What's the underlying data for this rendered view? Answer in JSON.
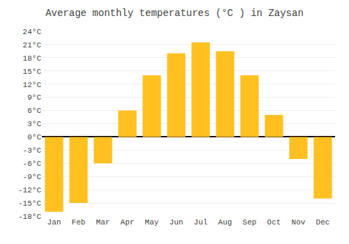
{
  "chart_data": {
    "type": "bar",
    "title": "Average monthly temperatures (°C ) in Zaysan",
    "categories": [
      "Jan",
      "Feb",
      "Mar",
      "Apr",
      "May",
      "Jun",
      "Jul",
      "Aug",
      "Sep",
      "Oct",
      "Nov",
      "Dec"
    ],
    "values": [
      -17,
      -15,
      -6,
      6,
      14,
      19,
      21.5,
      19.5,
      14,
      5,
      -5,
      -14
    ],
    "color": "#FFC020",
    "ylim": [
      -18,
      24
    ],
    "yticks": [
      {
        "value": -18,
        "label": "-18°C"
      },
      {
        "value": -15,
        "label": "-15°C"
      },
      {
        "value": -12,
        "label": "-12°C"
      },
      {
        "value": -9,
        "label": "-9°C"
      },
      {
        "value": -6,
        "label": "-6°C"
      },
      {
        "value": -3,
        "label": "-3°C"
      },
      {
        "value": 0,
        "label": "0°C"
      },
      {
        "value": 3,
        "label": "3°C"
      },
      {
        "value": 6,
        "label": "6°C"
      },
      {
        "value": 9,
        "label": "9°C"
      },
      {
        "value": 12,
        "label": "12°C"
      },
      {
        "value": 15,
        "label": "15°C"
      },
      {
        "value": 18,
        "label": "18°C"
      },
      {
        "value": 21,
        "label": "21°C"
      },
      {
        "value": 24,
        "label": "24°C"
      }
    ],
    "grid": true
  }
}
